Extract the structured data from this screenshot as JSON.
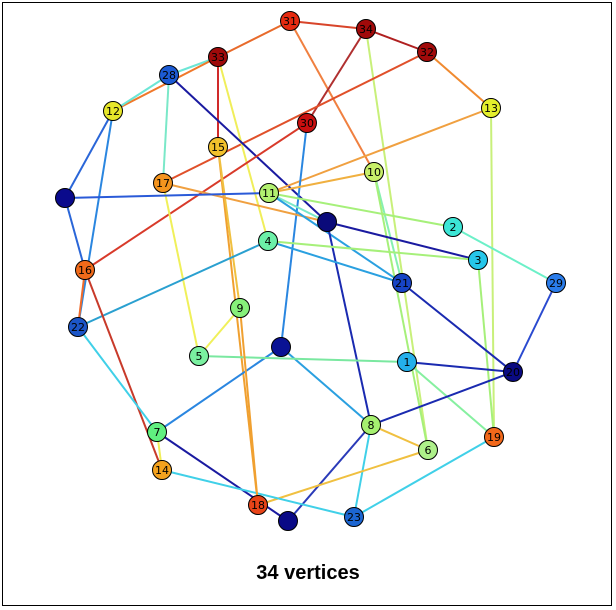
{
  "caption": "34 vertices",
  "graph": {
    "nodes": [
      {
        "id": "31",
        "label": "31",
        "color": "#e52a10"
      },
      {
        "id": "34",
        "label": "34",
        "color": "#a10a0a"
      },
      {
        "id": "32",
        "label": "32",
        "color": "#a10a0a"
      },
      {
        "id": "33",
        "label": "33",
        "color": "#9e0a0a"
      },
      {
        "id": "28",
        "label": "28",
        "color": "#1c5bd4"
      },
      {
        "id": "12",
        "label": "12",
        "color": "#e6e62a"
      },
      {
        "id": "13",
        "label": "13",
        "color": "#e4ef2c"
      },
      {
        "id": "30",
        "label": "30",
        "color": "#c80f0f"
      },
      {
        "id": "15",
        "label": "15",
        "color": "#f2c12c"
      },
      {
        "id": "10",
        "label": "10",
        "color": "#c8f06a"
      },
      {
        "id": "17",
        "label": "17",
        "color": "#f4941e"
      },
      {
        "id": "11",
        "label": "11",
        "color": "#b2f070"
      },
      {
        "id": "a",
        "label": "",
        "color": "#0a0a8c"
      },
      {
        "id": "b",
        "label": "",
        "color": "#0a0a7a"
      },
      {
        "id": "2",
        "label": "2",
        "color": "#3ce6d6"
      },
      {
        "id": "4",
        "label": "4",
        "color": "#6cf0a8"
      },
      {
        "id": "3",
        "label": "3",
        "color": "#26c6ea"
      },
      {
        "id": "29",
        "label": "29",
        "color": "#2a7cea"
      },
      {
        "id": "16",
        "label": "16",
        "color": "#f06a1a"
      },
      {
        "id": "21",
        "label": "21",
        "color": "#1744c4"
      },
      {
        "id": "9",
        "label": "9",
        "color": "#86f07a"
      },
      {
        "id": "22",
        "label": "22",
        "color": "#1c56c8"
      },
      {
        "id": "c",
        "label": "",
        "color": "#0a1294"
      },
      {
        "id": "5",
        "label": "5",
        "color": "#7af0a0"
      },
      {
        "id": "1",
        "label": "1",
        "color": "#24b0ea"
      },
      {
        "id": "20",
        "label": "20",
        "color": "#0a0a82"
      },
      {
        "id": "8",
        "label": "8",
        "color": "#a6f070"
      },
      {
        "id": "7",
        "label": "7",
        "color": "#60f080"
      },
      {
        "id": "6",
        "label": "6",
        "color": "#aef08a"
      },
      {
        "id": "19",
        "label": "19",
        "color": "#f2681a"
      },
      {
        "id": "14",
        "label": "14",
        "color": "#f4a21e"
      },
      {
        "id": "18",
        "label": "18",
        "color": "#e84418"
      },
      {
        "id": "d",
        "label": "",
        "color": "#0a0a86"
      },
      {
        "id": "23",
        "label": "23",
        "color": "#1c66d2"
      }
    ],
    "edges": [
      [
        "31",
        "33",
        "#e86a2a"
      ],
      [
        "31",
        "34",
        "#d8442a"
      ],
      [
        "31",
        "10",
        "#f08040"
      ],
      [
        "34",
        "32",
        "#b02020"
      ],
      [
        "34",
        "30",
        "#b03030"
      ],
      [
        "34",
        "6",
        "#c8f07a"
      ],
      [
        "32",
        "13",
        "#f08a30"
      ],
      [
        "32",
        "17",
        "#e0502a"
      ],
      [
        "33",
        "28",
        "#6ce6d6"
      ],
      [
        "33",
        "12",
        "#f0782a"
      ],
      [
        "33",
        "15",
        "#d02a2a"
      ],
      [
        "33",
        "4",
        "#f0ee5a"
      ],
      [
        "28",
        "12",
        "#6ce6d6"
      ],
      [
        "28",
        "17",
        "#7ae8c8"
      ],
      [
        "28",
        "b",
        "#1a1aa0"
      ],
      [
        "12",
        "a",
        "#2a66d8"
      ],
      [
        "12",
        "22",
        "#2a86e0"
      ],
      [
        "13",
        "11",
        "#f0a040"
      ],
      [
        "13",
        "19",
        "#c8f07a"
      ],
      [
        "30",
        "16",
        "#d83a2a"
      ],
      [
        "30",
        "c",
        "#2a86e0"
      ],
      [
        "15",
        "18",
        "#f0a030"
      ],
      [
        "15",
        "9",
        "#f0c040"
      ],
      [
        "10",
        "11",
        "#f0b040"
      ],
      [
        "10",
        "21",
        "#86f0b0"
      ],
      [
        "10",
        "6",
        "#a6f07a"
      ],
      [
        "17",
        "5",
        "#f0f05a"
      ],
      [
        "17",
        "b",
        "#f0a040"
      ],
      [
        "11",
        "b",
        "#7ae8c8"
      ],
      [
        "11",
        "2",
        "#a6f07a"
      ],
      [
        "11",
        "21",
        "#2aa0e0"
      ],
      [
        "a",
        "11",
        "#2a5ad8"
      ],
      [
        "a",
        "16",
        "#2a66d8"
      ],
      [
        "b",
        "3",
        "#1a1aa0"
      ],
      [
        "b",
        "8",
        "#1a2ab0"
      ],
      [
        "2",
        "29",
        "#6cf0c8"
      ],
      [
        "4",
        "3",
        "#a6f07a"
      ],
      [
        "4",
        "21",
        "#2aa0e0"
      ],
      [
        "4",
        "22",
        "#2aa0d0"
      ],
      [
        "3",
        "19",
        "#a6f07a"
      ],
      [
        "29",
        "20",
        "#2a4ad0"
      ],
      [
        "16",
        "22",
        "#f06a2a"
      ],
      [
        "16",
        "14",
        "#c83a2a"
      ],
      [
        "21",
        "20",
        "#1a2ab0"
      ],
      [
        "9",
        "5",
        "#f0f05a"
      ],
      [
        "22",
        "7",
        "#40d0e8"
      ],
      [
        "c",
        "7",
        "#2a86e0"
      ],
      [
        "c",
        "8",
        "#2aa0e0"
      ],
      [
        "5",
        "1",
        "#7ae8a0"
      ],
      [
        "1",
        "20",
        "#1a2ab0"
      ],
      [
        "1",
        "19",
        "#86f0a0"
      ],
      [
        "8",
        "20",
        "#1a2ab0"
      ],
      [
        "8",
        "6",
        "#f0c040"
      ],
      [
        "8",
        "23",
        "#40d0e8"
      ],
      [
        "8",
        "d",
        "#2a3ab8"
      ],
      [
        "7",
        "14",
        "#f0ee5a"
      ],
      [
        "7",
        "d",
        "#1a1aa0"
      ],
      [
        "6",
        "18",
        "#f0c040"
      ],
      [
        "19",
        "23",
        "#40d0e8"
      ],
      [
        "14",
        "23",
        "#40d0e8"
      ],
      [
        "18",
        "9",
        "#f0a030"
      ]
    ]
  }
}
